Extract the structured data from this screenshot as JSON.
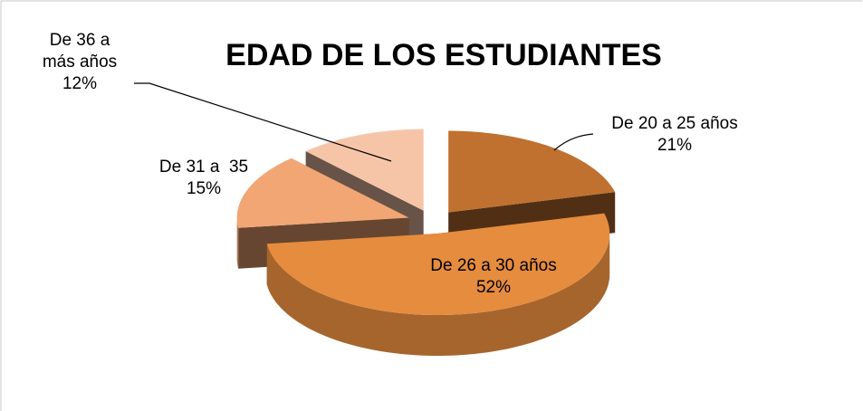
{
  "chart_data": {
    "type": "pie",
    "title": "EDAD DE LOS ESTUDIANTES",
    "categories": [
      "De 20 a 25 años",
      "De 26 a 30 años",
      "De 31 a  35",
      "De 36 a más años"
    ],
    "values": [
      21,
      52,
      15,
      12
    ],
    "value_labels": [
      "21%",
      "52%",
      "15%",
      "12%"
    ],
    "colors": [
      "#c0712f",
      "#e68c3e",
      "#f2a674",
      "#f6c5a8"
    ]
  }
}
